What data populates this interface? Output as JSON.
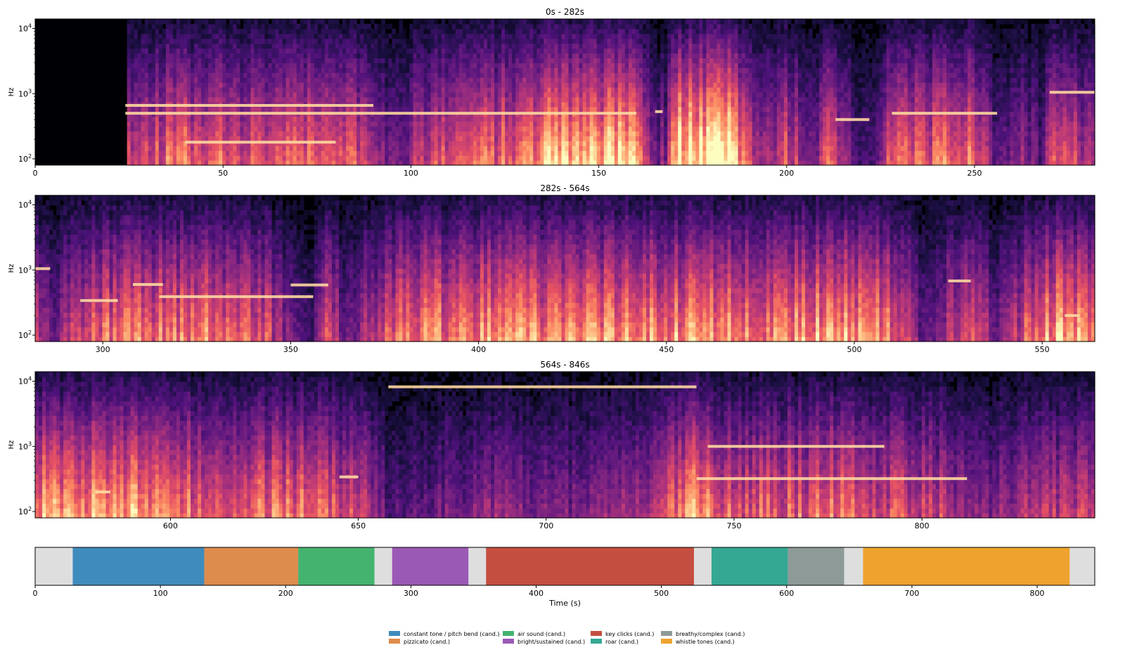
{
  "chart_data": [
    {
      "type": "heatmap",
      "title": "0s - 282s",
      "xlabel": "",
      "ylabel": "Hz",
      "xlim": [
        0,
        282
      ],
      "ylim": [
        80,
        14000
      ],
      "yscale": "log",
      "xticks": [
        0,
        50,
        100,
        150,
        200,
        250
      ],
      "yticks": [
        {
          "value": 100,
          "label": "10^2"
        },
        {
          "value": 1000,
          "label": "10^3"
        },
        {
          "value": 10000,
          "label": "10^4"
        }
      ],
      "colormap": "magma",
      "energy": [
        [
          0,
          0.05
        ],
        [
          24,
          0.08
        ],
        [
          25,
          0.55
        ],
        [
          40,
          0.6
        ],
        [
          60,
          0.5
        ],
        [
          85,
          0.62
        ],
        [
          90,
          0.35
        ],
        [
          98,
          0.3
        ],
        [
          100,
          0.45
        ],
        [
          110,
          0.55
        ],
        [
          130,
          0.62
        ],
        [
          137,
          0.75
        ],
        [
          150,
          0.78
        ],
        [
          160,
          0.85
        ],
        [
          164,
          0.3
        ],
        [
          168,
          0.35
        ],
        [
          171,
          0.85
        ],
        [
          185,
          0.9
        ],
        [
          192,
          0.4
        ],
        [
          200,
          0.55
        ],
        [
          208,
          0.3
        ],
        [
          211,
          0.55
        ],
        [
          222,
          0.15
        ],
        [
          228,
          0.55
        ],
        [
          250,
          0.6
        ],
        [
          256,
          0.2
        ],
        [
          262,
          0.45
        ],
        [
          268,
          0.2
        ],
        [
          270,
          0.5
        ],
        [
          282,
          0.45
        ]
      ],
      "harmonics": [
        {
          "x0": 24,
          "x1": 90,
          "f": 660
        },
        {
          "x0": 24,
          "x1": 160,
          "f": 500
        },
        {
          "x0": 40,
          "x1": 80,
          "f": 180
        },
        {
          "x0": 213,
          "x1": 222,
          "f": 400
        },
        {
          "x0": 270,
          "x1": 282,
          "f": 1050
        },
        {
          "x0": 165,
          "x1": 167,
          "f": 530
        },
        {
          "x0": 228,
          "x1": 256,
          "f": 500
        }
      ]
    },
    {
      "type": "heatmap",
      "title": "282s - 564s",
      "xlabel": "",
      "ylabel": "Hz",
      "xlim": [
        282,
        564
      ],
      "ylim": [
        80,
        14000
      ],
      "yscale": "log",
      "xticks": [
        300,
        350,
        400,
        450,
        500,
        550
      ],
      "yticks": [
        {
          "value": 100,
          "label": "10^2"
        },
        {
          "value": 1000,
          "label": "10^3"
        },
        {
          "value": 10000,
          "label": "10^4"
        }
      ],
      "colormap": "magma",
      "energy": [
        [
          282,
          0.55
        ],
        [
          288,
          0.3
        ],
        [
          292,
          0.55
        ],
        [
          300,
          0.6
        ],
        [
          320,
          0.65
        ],
        [
          340,
          0.6
        ],
        [
          356,
          0.2
        ],
        [
          360,
          0.55
        ],
        [
          364,
          0.3
        ],
        [
          380,
          0.62
        ],
        [
          400,
          0.68
        ],
        [
          420,
          0.65
        ],
        [
          450,
          0.7
        ],
        [
          480,
          0.7
        ],
        [
          500,
          0.72
        ],
        [
          513,
          0.6
        ],
        [
          518,
          0.25
        ],
        [
          525,
          0.45
        ],
        [
          530,
          0.55
        ],
        [
          538,
          0.3
        ],
        [
          550,
          0.7
        ],
        [
          555,
          0.75
        ],
        [
          564,
          0.6
        ]
      ],
      "harmonics": [
        {
          "x0": 282,
          "x1": 286,
          "f": 1050
        },
        {
          "x0": 294,
          "x1": 304,
          "f": 340
        },
        {
          "x0": 308,
          "x1": 316,
          "f": 600
        },
        {
          "x0": 315,
          "x1": 356,
          "f": 390
        },
        {
          "x0": 350,
          "x1": 360,
          "f": 590
        },
        {
          "x0": 525,
          "x1": 531,
          "f": 680
        },
        {
          "x0": 556,
          "x1": 560,
          "f": 200
        }
      ]
    },
    {
      "type": "heatmap",
      "title": "564s - 846s",
      "xlabel": "",
      "ylabel": "Hz",
      "xlim": [
        564,
        846
      ],
      "ylim": [
        80,
        14000
      ],
      "yscale": "log",
      "xticks": [
        600,
        650,
        700,
        750,
        800
      ],
      "yticks": [
        {
          "value": 100,
          "label": "10^2"
        },
        {
          "value": 1000,
          "label": "10^3"
        },
        {
          "value": 10000,
          "label": "10^4"
        }
      ],
      "colormap": "magma",
      "energy": [
        [
          564,
          0.7
        ],
        [
          580,
          0.75
        ],
        [
          600,
          0.72
        ],
        [
          610,
          0.5
        ],
        [
          620,
          0.65
        ],
        [
          640,
          0.6
        ],
        [
          654,
          0.45
        ],
        [
          658,
          0.2
        ],
        [
          670,
          0.3
        ],
        [
          690,
          0.35
        ],
        [
          710,
          0.3
        ],
        [
          720,
          0.4
        ],
        [
          730,
          0.45
        ],
        [
          740,
          0.8
        ],
        [
          745,
          0.6
        ],
        [
          760,
          0.55
        ],
        [
          775,
          0.6
        ],
        [
          790,
          0.55
        ],
        [
          800,
          0.5
        ],
        [
          808,
          0.45
        ],
        [
          813,
          0.3
        ],
        [
          820,
          0.35
        ],
        [
          830,
          0.45
        ],
        [
          846,
          0.5
        ]
      ],
      "harmonics": [
        {
          "x0": 658,
          "x1": 740,
          "f": 8200
        },
        {
          "x0": 740,
          "x1": 812,
          "f": 320
        },
        {
          "x0": 743,
          "x1": 790,
          "f": 1000
        },
        {
          "x0": 580,
          "x1": 584,
          "f": 200
        },
        {
          "x0": 645,
          "x1": 650,
          "f": 340
        }
      ]
    },
    {
      "type": "bar",
      "orientation": "horizontal-segments",
      "title": "",
      "xlabel": "Time (s)",
      "ylabel": "",
      "xlim": [
        0,
        846
      ],
      "xticks": [
        0,
        100,
        200,
        300,
        400,
        500,
        600,
        700,
        800
      ],
      "segments": [
        {
          "start": 0,
          "end": 30,
          "category": "none"
        },
        {
          "start": 30,
          "end": 135,
          "category": "constant tone / pitch bend (cand.)"
        },
        {
          "start": 135,
          "end": 210,
          "category": "pizzicato (cand.)"
        },
        {
          "start": 210,
          "end": 271,
          "category": "air sound (cand.)"
        },
        {
          "start": 271,
          "end": 285,
          "category": "none"
        },
        {
          "start": 285,
          "end": 346,
          "category": "bright/sustained (cand.)"
        },
        {
          "start": 346,
          "end": 360,
          "category": "none"
        },
        {
          "start": 360,
          "end": 526,
          "category": "key clicks (cand.)"
        },
        {
          "start": 526,
          "end": 540,
          "category": "none"
        },
        {
          "start": 540,
          "end": 601,
          "category": "roar (cand.)"
        },
        {
          "start": 601,
          "end": 646,
          "category": "breathy/complex (cand.)"
        },
        {
          "start": 646,
          "end": 661,
          "category": "none"
        },
        {
          "start": 661,
          "end": 826,
          "category": "whistle tones (cand.)"
        },
        {
          "start": 826,
          "end": 846,
          "category": "none"
        }
      ],
      "legend": [
        {
          "label": "constant tone / pitch bend (cand.)",
          "color": "#3f8bbd"
        },
        {
          "label": "pizzicato (cand.)",
          "color": "#de8c4d"
        },
        {
          "label": "air sound (cand.)",
          "color": "#44b36f"
        },
        {
          "label": "bright/sustained (cand.)",
          "color": "#9b59b6"
        },
        {
          "label": "key clicks (cand.)",
          "color": "#c44e40"
        },
        {
          "label": "roar (cand.)",
          "color": "#34a893"
        },
        {
          "label": "breathy/complex (cand.)",
          "color": "#8e9a98"
        },
        {
          "label": "whistle tones (cand.)",
          "color": "#eea32e"
        }
      ],
      "none_color": "#dedede",
      "legend_position": "bottom-center"
    }
  ]
}
